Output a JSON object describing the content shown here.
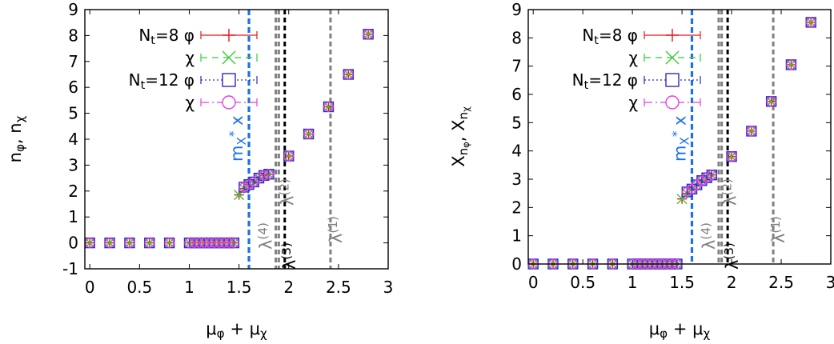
{
  "chart_data": [
    {
      "type": "scatter",
      "title": "",
      "xlabel": "μ_φ + μ_χ",
      "ylabel": "n_φ, n_χ",
      "xlim": [
        -0.05,
        3
      ],
      "ylim": [
        -1,
        9
      ],
      "xticks": [
        "0",
        "0.5",
        "1",
        "1.5",
        "2",
        "2.5",
        "3"
      ],
      "yticks": [
        "-1",
        "0",
        "1",
        "2",
        "3",
        "4",
        "5",
        "6",
        "7",
        "8",
        "9"
      ],
      "legend": {
        "position": "top-left",
        "entries": [
          "N_t=8 φ",
          "χ",
          "N_t=12 φ",
          "χ"
        ]
      },
      "vlines": [
        {
          "label": "m_X^* x",
          "x": 1.6,
          "color": "#1a73e8"
        },
        {
          "label": "λ(4)",
          "x": 1.87,
          "color": "#808080"
        },
        {
          "label": "λ(3)",
          "x": 1.96,
          "color": "#000000"
        },
        {
          "label": "λ(2)",
          "x": 1.9,
          "color": "#808080"
        },
        {
          "label": "λ(1)",
          "x": 2.42,
          "color": "#808080"
        }
      ],
      "series": [
        {
          "name": "N_t=8 φ",
          "marker": "plus",
          "color": "#e41a1c",
          "x": [
            0,
            0.2,
            0.4,
            0.6,
            0.8,
            1.0,
            1.05,
            1.1,
            1.15,
            1.2,
            1.25,
            1.3,
            1.35,
            1.4,
            1.45,
            1.5,
            1.55,
            1.6,
            1.65,
            1.7,
            1.75,
            1.8,
            2.0,
            2.2,
            2.4,
            2.6,
            2.8
          ],
          "y": [
            0,
            0,
            0,
            0,
            0,
            0,
            0,
            0,
            0,
            0,
            0,
            0,
            0,
            0,
            0,
            1.85,
            2.1,
            2.25,
            2.35,
            2.5,
            2.6,
            2.65,
            3.35,
            4.2,
            5.25,
            6.5,
            8.05
          ]
        },
        {
          "name": "χ",
          "marker": "cross",
          "color": "#33cc33",
          "x": [
            0,
            0.2,
            0.4,
            0.6,
            0.8,
            1.0,
            1.05,
            1.1,
            1.15,
            1.2,
            1.25,
            1.3,
            1.35,
            1.4,
            1.45,
            1.5,
            1.55,
            1.6,
            1.65,
            1.7,
            1.75,
            1.8,
            2.0,
            2.2,
            2.4,
            2.6,
            2.8
          ],
          "y": [
            0,
            0,
            0,
            0,
            0,
            0,
            0,
            0,
            0,
            0,
            0,
            0,
            0,
            0,
            0,
            1.85,
            2.1,
            2.25,
            2.35,
            2.5,
            2.6,
            2.65,
            3.35,
            4.2,
            5.25,
            6.5,
            8.05
          ]
        },
        {
          "name": "N_t=12 φ",
          "marker": "square",
          "color": "#2b2bcc",
          "x": [
            0,
            0.2,
            0.4,
            0.6,
            0.8,
            1.0,
            1.05,
            1.1,
            1.15,
            1.2,
            1.25,
            1.3,
            1.35,
            1.4,
            1.45,
            1.55,
            1.6,
            1.65,
            1.7,
            1.75,
            1.8,
            2.0,
            2.2,
            2.4,
            2.6,
            2.8
          ],
          "y": [
            0,
            0,
            0,
            0,
            0,
            0,
            0,
            0,
            0,
            0,
            0,
            0,
            0,
            0,
            0,
            2.15,
            2.25,
            2.35,
            2.5,
            2.6,
            2.65,
            3.35,
            4.2,
            5.25,
            6.5,
            8.05
          ]
        },
        {
          "name": "χ",
          "marker": "circle",
          "color": "#e040e0",
          "x": [
            0,
            0.2,
            0.4,
            0.6,
            0.8,
            1.0,
            1.05,
            1.1,
            1.15,
            1.2,
            1.25,
            1.3,
            1.35,
            1.4,
            1.45,
            1.55,
            1.6,
            1.65,
            1.7,
            1.75,
            1.8,
            2.0,
            2.2,
            2.4,
            2.6,
            2.8
          ],
          "y": [
            0,
            0,
            0,
            0,
            0,
            0,
            0,
            0,
            0,
            0,
            0,
            0,
            0,
            0,
            0,
            2.15,
            2.25,
            2.35,
            2.5,
            2.6,
            2.65,
            3.35,
            4.2,
            5.25,
            6.5,
            8.05
          ]
        }
      ]
    },
    {
      "type": "scatter",
      "title": "",
      "xlabel": "μ_φ + μ_χ",
      "ylabel": "X_{n_φ}, X_{n_χ}",
      "xlim": [
        -0.05,
        3
      ],
      "ylim": [
        0,
        9
      ],
      "xticks": [
        "0",
        "0.5",
        "1",
        "1.5",
        "2",
        "2.5",
        "3"
      ],
      "yticks": [
        "0",
        "1",
        "2",
        "3",
        "4",
        "5",
        "6",
        "7",
        "8",
        "9"
      ],
      "legend": {
        "position": "top-left",
        "entries": [
          "N_t=8 φ",
          "χ",
          "N_t=12 φ",
          "χ"
        ]
      },
      "vlines": [
        {
          "label": "m_X^* x",
          "x": 1.6,
          "color": "#1a73e8"
        },
        {
          "label": "λ(4)",
          "x": 1.87,
          "color": "#808080"
        },
        {
          "label": "λ(3)",
          "x": 1.96,
          "color": "#000000"
        },
        {
          "label": "λ(2)",
          "x": 1.9,
          "color": "#808080"
        },
        {
          "label": "λ(1)",
          "x": 2.42,
          "color": "#808080"
        }
      ],
      "series": [
        {
          "name": "N_t=8 φ",
          "marker": "plus",
          "color": "#e41a1c",
          "x": [
            0,
            0.2,
            0.4,
            0.6,
            0.8,
            1.0,
            1.05,
            1.1,
            1.15,
            1.2,
            1.25,
            1.3,
            1.35,
            1.4,
            1.45,
            1.5,
            1.55,
            1.6,
            1.65,
            1.7,
            1.75,
            1.8,
            2.0,
            2.2,
            2.4,
            2.6,
            2.8
          ],
          "y": [
            0,
            0,
            0,
            0,
            0,
            0,
            0,
            0,
            0,
            0,
            0,
            0,
            0,
            0,
            0,
            2.3,
            2.5,
            2.65,
            2.8,
            2.95,
            3.05,
            3.15,
            3.8,
            4.7,
            5.75,
            7.05,
            8.55
          ]
        },
        {
          "name": "χ",
          "marker": "cross",
          "color": "#33cc33",
          "x": [
            0,
            0.2,
            0.4,
            0.6,
            0.8,
            1.0,
            1.05,
            1.1,
            1.15,
            1.2,
            1.25,
            1.3,
            1.35,
            1.4,
            1.45,
            1.5,
            1.55,
            1.6,
            1.65,
            1.7,
            1.75,
            1.8,
            2.0,
            2.2,
            2.4,
            2.6,
            2.8
          ],
          "y": [
            0,
            0,
            0,
            0,
            0,
            0,
            0,
            0,
            0,
            0,
            0,
            0,
            0,
            0,
            0,
            2.3,
            2.5,
            2.65,
            2.8,
            2.95,
            3.05,
            3.15,
            3.8,
            4.7,
            5.75,
            7.05,
            8.55
          ]
        },
        {
          "name": "N_t=12 φ",
          "marker": "square",
          "color": "#2b2bcc",
          "x": [
            0,
            0.2,
            0.4,
            0.6,
            0.8,
            1.0,
            1.05,
            1.1,
            1.15,
            1.2,
            1.25,
            1.3,
            1.35,
            1.4,
            1.45,
            1.55,
            1.6,
            1.65,
            1.7,
            1.75,
            1.8,
            2.0,
            2.2,
            2.4,
            2.6,
            2.8
          ],
          "y": [
            0,
            0,
            0,
            0,
            0,
            0,
            0,
            0,
            0,
            0,
            0,
            0,
            0,
            0,
            0,
            2.55,
            2.65,
            2.8,
            2.95,
            3.05,
            3.15,
            3.8,
            4.7,
            5.75,
            7.05,
            8.55
          ]
        },
        {
          "name": "χ",
          "marker": "circle",
          "color": "#e040e0",
          "x": [
            0,
            0.2,
            0.4,
            0.6,
            0.8,
            1.0,
            1.05,
            1.1,
            1.15,
            1.2,
            1.25,
            1.3,
            1.35,
            1.4,
            1.45,
            1.55,
            1.6,
            1.65,
            1.7,
            1.75,
            1.8,
            2.0,
            2.2,
            2.4,
            2.6,
            2.8
          ],
          "y": [
            0,
            0,
            0,
            0,
            0,
            0,
            0,
            0,
            0,
            0,
            0,
            0,
            0,
            0,
            0,
            2.55,
            2.65,
            2.8,
            2.95,
            3.05,
            3.15,
            3.8,
            4.7,
            5.75,
            7.05,
            8.55
          ]
        }
      ]
    }
  ]
}
